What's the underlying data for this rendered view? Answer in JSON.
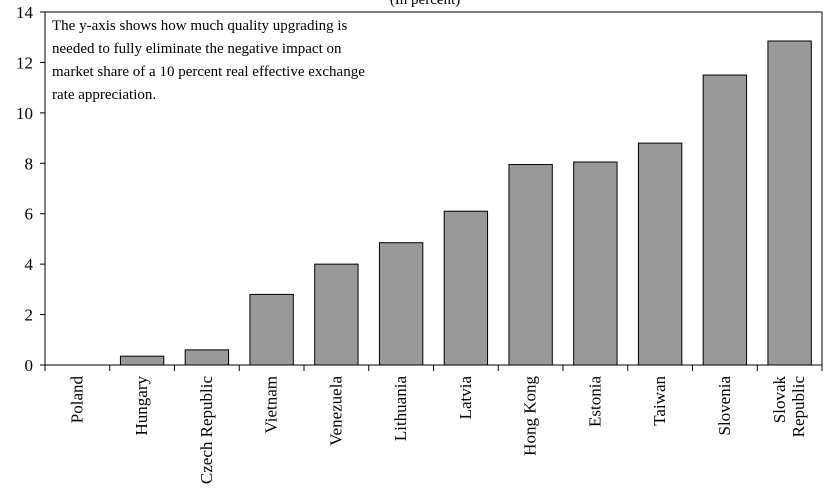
{
  "chart_data": {
    "type": "bar",
    "title": "(In percent)",
    "annotation": [
      "The y-axis shows how much quality upgrading is",
      "needed to fully eliminate the negative impact on",
      "market share of a 10 percent real effective exchange",
      "rate appreciation."
    ],
    "categories": [
      [
        "Poland"
      ],
      [
        "Hungary"
      ],
      [
        "Czech Republic"
      ],
      [
        "Vietnam"
      ],
      [
        "Venezuela"
      ],
      [
        "Lithuania"
      ],
      [
        "Latvia"
      ],
      [
        "Hong Kong"
      ],
      [
        "Estonia"
      ],
      [
        "Taiwan"
      ],
      [
        "Slovenia"
      ],
      [
        "Slovak",
        "Republic"
      ]
    ],
    "values": [
      0,
      0.35,
      0.6,
      2.8,
      4.0,
      4.85,
      6.1,
      7.95,
      8.05,
      8.8,
      11.5,
      12.85
    ],
    "ylim": [
      0,
      14
    ],
    "yticks": [
      0,
      2,
      4,
      6,
      8,
      10,
      12,
      14
    ],
    "xlabel": "",
    "ylabel": "",
    "grid": false,
    "bar_color": "#999999",
    "bar_edge_color": "#000000"
  }
}
